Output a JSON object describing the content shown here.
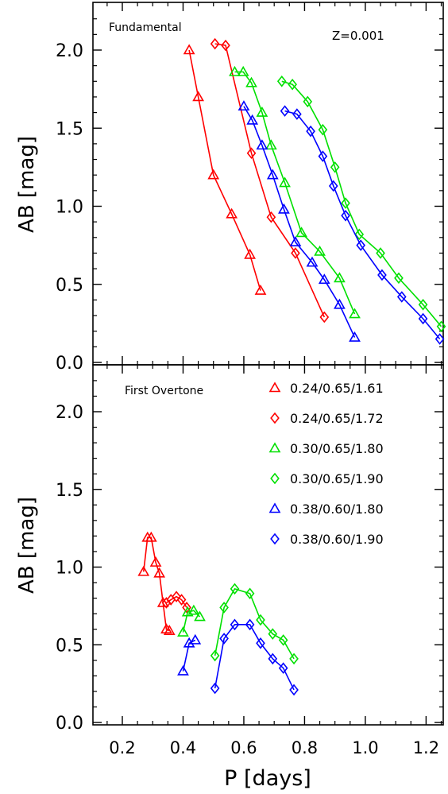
{
  "chart_data": [
    {
      "type": "line",
      "annotation": "Fundamental",
      "annotation2": "Z=0.001",
      "xlabel": "",
      "ylabel": "AB [mag]",
      "xlim": [
        0.1,
        1.27
      ],
      "ylim": [
        0.0,
        2.3
      ],
      "xticks": [
        "0.2",
        "0.4",
        "0.6",
        "0.8",
        "1.0",
        "1.2"
      ],
      "xtick_values": [
        0.2,
        0.4,
        0.6,
        0.8,
        1.0,
        1.2
      ],
      "yticks": [
        "0.0",
        "0.5",
        "1.0",
        "1.5",
        "2.0"
      ],
      "ytick_values": [
        0.0,
        0.5,
        1.0,
        1.5,
        2.0
      ],
      "series": [
        {
          "key": "s1",
          "color": "#ff0000",
          "marker": "triangle",
          "x": [
            0.42,
            0.45,
            0.5,
            0.56,
            0.62,
            0.655
          ],
          "y": [
            2.0,
            1.7,
            1.2,
            0.95,
            0.69,
            0.46
          ]
        },
        {
          "key": "s2",
          "color": "#ff0000",
          "marker": "diamond",
          "x": [
            0.505,
            0.54,
            0.625,
            0.69,
            0.77,
            0.865
          ],
          "y": [
            2.04,
            2.03,
            1.34,
            0.93,
            0.7,
            0.29
          ]
        },
        {
          "key": "s3",
          "color": "#00e000",
          "marker": "triangle",
          "x": [
            0.57,
            0.598,
            0.625,
            0.66,
            0.69,
            0.735,
            0.79,
            0.85,
            0.915,
            0.965
          ],
          "y": [
            1.86,
            1.86,
            1.79,
            1.6,
            1.39,
            1.15,
            0.83,
            0.71,
            0.54,
            0.31
          ]
        },
        {
          "key": "s4",
          "color": "#00e000",
          "marker": "diamond",
          "x": [
            0.725,
            0.76,
            0.81,
            0.86,
            0.9,
            0.935,
            0.98,
            1.05,
            1.11,
            1.19,
            1.25
          ],
          "y": [
            1.8,
            1.78,
            1.67,
            1.49,
            1.25,
            1.02,
            0.82,
            0.7,
            0.54,
            0.37,
            0.23
          ]
        },
        {
          "key": "s5",
          "color": "#0000ff",
          "marker": "triangle",
          "x": [
            0.6,
            0.628,
            0.66,
            0.695,
            0.732,
            0.77,
            0.825,
            0.865,
            0.915,
            0.965
          ],
          "y": [
            1.64,
            1.55,
            1.39,
            1.2,
            0.98,
            0.77,
            0.64,
            0.53,
            0.37,
            0.16
          ]
        },
        {
          "key": "s6",
          "color": "#0000ff",
          "marker": "diamond",
          "x": [
            0.735,
            0.775,
            0.82,
            0.86,
            0.895,
            0.935,
            0.985,
            1.055,
            1.12,
            1.19,
            1.245
          ],
          "y": [
            1.61,
            1.59,
            1.48,
            1.32,
            1.13,
            0.94,
            0.75,
            0.56,
            0.42,
            0.28,
            0.15
          ]
        }
      ]
    },
    {
      "type": "line",
      "annotation": "First Overtone",
      "xlabel": "P [days]",
      "ylabel": "AB [mag]",
      "xlim": [
        0.1,
        1.27
      ],
      "ylim": [
        0.0,
        2.3
      ],
      "xticks": [
        "0.2",
        "0.4",
        "0.6",
        "0.8",
        "1.0",
        "1.2"
      ],
      "xtick_values": [
        0.2,
        0.4,
        0.6,
        0.8,
        1.0,
        1.2
      ],
      "yticks": [
        "0.0",
        "0.5",
        "1.0",
        "1.5",
        "2.0"
      ],
      "ytick_values": [
        0.0,
        0.5,
        1.0,
        1.5,
        2.0
      ],
      "series": [
        {
          "key": "s1",
          "color": "#ff0000",
          "marker": "triangle",
          "x": [
            0.27,
            0.283,
            0.295,
            0.31,
            0.322,
            0.334,
            0.345,
            0.355
          ],
          "y": [
            0.97,
            1.19,
            1.19,
            1.03,
            0.96,
            0.77,
            0.6,
            0.59
          ]
        },
        {
          "key": "s2",
          "color": "#ff0000",
          "marker": "diamond",
          "x": [
            0.345,
            0.36,
            0.378,
            0.395,
            0.412
          ],
          "y": [
            0.77,
            0.79,
            0.81,
            0.79,
            0.74
          ]
        },
        {
          "key": "s3",
          "color": "#00e000",
          "marker": "triangle",
          "x": [
            0.4,
            0.415,
            0.435,
            0.455
          ],
          "y": [
            0.58,
            0.71,
            0.72,
            0.68
          ]
        },
        {
          "key": "s4",
          "color": "#00e000",
          "marker": "diamond",
          "x": [
            0.505,
            0.535,
            0.57,
            0.62,
            0.655,
            0.695,
            0.73,
            0.765
          ],
          "y": [
            0.43,
            0.74,
            0.86,
            0.83,
            0.66,
            0.57,
            0.53,
            0.41
          ]
        },
        {
          "key": "s5",
          "color": "#0000ff",
          "marker": "triangle",
          "x": [
            0.4,
            0.42,
            0.44
          ],
          "y": [
            0.33,
            0.51,
            0.53
          ]
        },
        {
          "key": "s6",
          "color": "#0000ff",
          "marker": "diamond",
          "x": [
            0.505,
            0.535,
            0.57,
            0.62,
            0.655,
            0.695,
            0.73,
            0.765
          ],
          "y": [
            0.22,
            0.54,
            0.63,
            0.63,
            0.51,
            0.41,
            0.35,
            0.21
          ]
        }
      ],
      "legend": {
        "placement": "top-right",
        "entries": [
          {
            "key": "s1",
            "label": "0.24/0.65/1.61"
          },
          {
            "key": "s2",
            "label": "0.24/0.65/1.72"
          },
          {
            "key": "s3",
            "label": "0.30/0.65/1.80"
          },
          {
            "key": "s4",
            "label": "0.30/0.65/1.90"
          },
          {
            "key": "s5",
            "label": "0.38/0.60/1.80"
          },
          {
            "key": "s6",
            "label": "0.38/0.60/1.90"
          }
        ]
      }
    }
  ]
}
